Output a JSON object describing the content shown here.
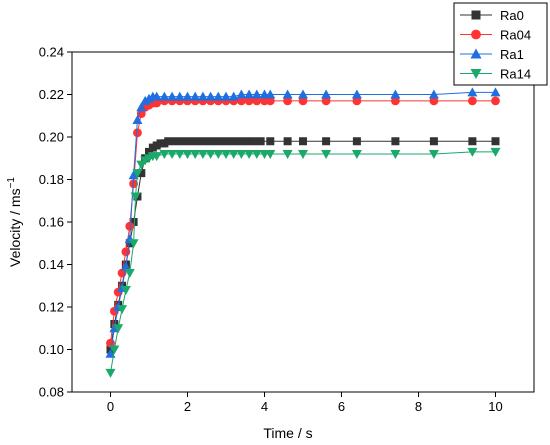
{
  "chart_data": {
    "type": "line",
    "title": "",
    "xlabel": "Time / s",
    "ylabel_main": "Velocity / ms",
    "ylabel_sup": "−1",
    "xlim": [
      -1,
      11
    ],
    "ylim": [
      0.08,
      0.24
    ],
    "xticks": [
      0,
      2,
      4,
      6,
      8,
      10
    ],
    "yticks": [
      0.08,
      0.1,
      0.12,
      0.14,
      0.16,
      0.18,
      0.2,
      0.22,
      0.24
    ],
    "ytick_labels": [
      "0.08",
      "0.10",
      "0.12",
      "0.14",
      "0.16",
      "0.18",
      "0.20",
      "0.22",
      "0.24"
    ],
    "grid": false,
    "legend_position": "top-right",
    "series": [
      {
        "name": "Ra0",
        "color": "#333333",
        "marker": "square",
        "points": [
          [
            0,
            0.1
          ],
          [
            0.1,
            0.112
          ],
          [
            0.2,
            0.121
          ],
          [
            0.3,
            0.13
          ],
          [
            0.4,
            0.14
          ],
          [
            0.5,
            0.15
          ],
          [
            0.6,
            0.16
          ],
          [
            0.7,
            0.172
          ],
          [
            0.8,
            0.183
          ],
          [
            0.9,
            0.19
          ],
          [
            1.0,
            0.193
          ],
          [
            1.1,
            0.195
          ],
          [
            1.2,
            0.196
          ],
          [
            1.3,
            0.197
          ],
          [
            1.4,
            0.197
          ],
          [
            1.5,
            0.198
          ],
          [
            1.7,
            0.198
          ],
          [
            1.9,
            0.198
          ],
          [
            2.1,
            0.198
          ],
          [
            2.3,
            0.198
          ],
          [
            2.5,
            0.198
          ],
          [
            2.7,
            0.198
          ],
          [
            2.9,
            0.198
          ],
          [
            3.1,
            0.198
          ],
          [
            3.3,
            0.198
          ],
          [
            3.5,
            0.198
          ],
          [
            3.7,
            0.198
          ],
          [
            3.9,
            0.198
          ],
          [
            4.15,
            0.198
          ],
          [
            4.6,
            0.198
          ],
          [
            5.0,
            0.198
          ],
          [
            5.6,
            0.198
          ],
          [
            6.4,
            0.198
          ],
          [
            7.4,
            0.198
          ],
          [
            8.4,
            0.198
          ],
          [
            9.4,
            0.198
          ],
          [
            10.0,
            0.198
          ]
        ]
      },
      {
        "name": "Ra04",
        "color": "#ff3333",
        "marker": "circle",
        "points": [
          [
            0,
            0.103
          ],
          [
            0.1,
            0.118
          ],
          [
            0.2,
            0.127
          ],
          [
            0.3,
            0.136
          ],
          [
            0.4,
            0.146
          ],
          [
            0.5,
            0.158
          ],
          [
            0.6,
            0.178
          ],
          [
            0.7,
            0.202
          ],
          [
            0.8,
            0.211
          ],
          [
            0.9,
            0.214
          ],
          [
            1.0,
            0.215
          ],
          [
            1.1,
            0.216
          ],
          [
            1.2,
            0.216
          ],
          [
            1.4,
            0.217
          ],
          [
            1.6,
            0.217
          ],
          [
            1.8,
            0.217
          ],
          [
            2.0,
            0.217
          ],
          [
            2.2,
            0.217
          ],
          [
            2.4,
            0.217
          ],
          [
            2.6,
            0.217
          ],
          [
            2.8,
            0.217
          ],
          [
            3.0,
            0.217
          ],
          [
            3.2,
            0.217
          ],
          [
            3.4,
            0.217
          ],
          [
            3.6,
            0.217
          ],
          [
            3.8,
            0.217
          ],
          [
            4.0,
            0.217
          ],
          [
            4.15,
            0.217
          ],
          [
            4.6,
            0.217
          ],
          [
            5.0,
            0.217
          ],
          [
            5.6,
            0.217
          ],
          [
            6.4,
            0.217
          ],
          [
            7.4,
            0.217
          ],
          [
            8.4,
            0.217
          ],
          [
            9.4,
            0.217
          ],
          [
            10.0,
            0.217
          ]
        ]
      },
      {
        "name": "Ra1",
        "color": "#1f6fe0",
        "marker": "triangle-up",
        "points": [
          [
            0,
            0.098
          ],
          [
            0.1,
            0.11
          ],
          [
            0.2,
            0.12
          ],
          [
            0.3,
            0.129
          ],
          [
            0.4,
            0.139
          ],
          [
            0.5,
            0.152
          ],
          [
            0.6,
            0.182
          ],
          [
            0.7,
            0.208
          ],
          [
            0.8,
            0.214
          ],
          [
            0.9,
            0.217
          ],
          [
            1.0,
            0.218
          ],
          [
            1.1,
            0.219
          ],
          [
            1.2,
            0.219
          ],
          [
            1.4,
            0.219
          ],
          [
            1.6,
            0.219
          ],
          [
            1.8,
            0.219
          ],
          [
            2.0,
            0.219
          ],
          [
            2.2,
            0.219
          ],
          [
            2.4,
            0.219
          ],
          [
            2.6,
            0.219
          ],
          [
            2.8,
            0.219
          ],
          [
            3.0,
            0.219
          ],
          [
            3.2,
            0.219
          ],
          [
            3.4,
            0.22
          ],
          [
            3.6,
            0.22
          ],
          [
            3.8,
            0.22
          ],
          [
            4.0,
            0.22
          ],
          [
            4.15,
            0.22
          ],
          [
            4.6,
            0.22
          ],
          [
            5.0,
            0.22
          ],
          [
            5.6,
            0.22
          ],
          [
            6.4,
            0.22
          ],
          [
            7.4,
            0.22
          ],
          [
            8.4,
            0.22
          ],
          [
            9.4,
            0.221
          ],
          [
            10.0,
            0.221
          ]
        ]
      },
      {
        "name": "Ra14",
        "color": "#1aa86b",
        "marker": "triangle-down",
        "points": [
          [
            0,
            0.089
          ],
          [
            0.1,
            0.1
          ],
          [
            0.2,
            0.11
          ],
          [
            0.3,
            0.119
          ],
          [
            0.4,
            0.128
          ],
          [
            0.5,
            0.136
          ],
          [
            0.6,
            0.15
          ],
          [
            0.65,
            0.172
          ],
          [
            0.7,
            0.183
          ],
          [
            0.8,
            0.187
          ],
          [
            0.9,
            0.189
          ],
          [
            1.0,
            0.19
          ],
          [
            1.1,
            0.191
          ],
          [
            1.2,
            0.191
          ],
          [
            1.4,
            0.192
          ],
          [
            1.6,
            0.192
          ],
          [
            1.8,
            0.192
          ],
          [
            2.0,
            0.192
          ],
          [
            2.2,
            0.192
          ],
          [
            2.4,
            0.192
          ],
          [
            2.6,
            0.192
          ],
          [
            2.8,
            0.192
          ],
          [
            3.0,
            0.192
          ],
          [
            3.2,
            0.192
          ],
          [
            3.4,
            0.192
          ],
          [
            3.6,
            0.192
          ],
          [
            3.8,
            0.192
          ],
          [
            4.0,
            0.192
          ],
          [
            4.15,
            0.192
          ],
          [
            4.6,
            0.192
          ],
          [
            5.0,
            0.192
          ],
          [
            5.6,
            0.192
          ],
          [
            6.4,
            0.192
          ],
          [
            7.4,
            0.192
          ],
          [
            8.4,
            0.192
          ],
          [
            9.4,
            0.193
          ],
          [
            10.0,
            0.193
          ]
        ]
      }
    ]
  }
}
